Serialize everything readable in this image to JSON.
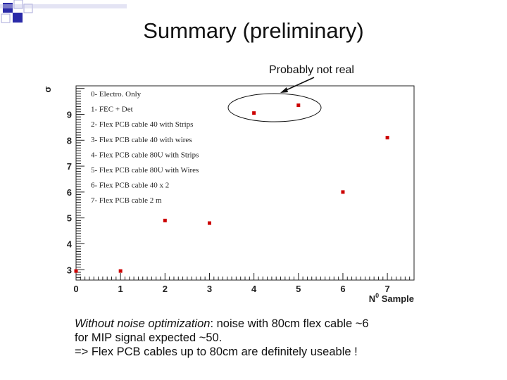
{
  "slide": {
    "title": "Summary (preliminary)",
    "callout": "Probably not real",
    "caption": {
      "line1_emph": "Without noise optimization",
      "line1_rest": ": noise with 80cm flex cable ~6",
      "line2": "for MIP signal expected ~50.",
      "line3": "=> Flex PCB cables up to 80cm are definitely useable !"
    },
    "colors": {
      "marker": "#cc0000",
      "axis": "#222222",
      "deco": "#2a2aa8",
      "deco_light": "#a7a7d8"
    }
  },
  "chart_data": {
    "type": "scatter",
    "title": "",
    "xlabel": "N0 Sample",
    "xlabel_parts": {
      "base": "N",
      "sup": "0",
      "rest": " Sample"
    },
    "ylabel": "σ",
    "xlim": [
      0,
      7.6
    ],
    "ylim": [
      2.6,
      10.1
    ],
    "xticks": [
      "0",
      "1",
      "2",
      "3",
      "4",
      "5",
      "6",
      "7"
    ],
    "yticks": [
      "3",
      "4",
      "5",
      "6",
      "7",
      "8",
      "9"
    ],
    "grid": false,
    "legend_placement": "top-left",
    "legend": [
      "0- Electro. Only",
      "1- FEC + Det",
      "2- Flex PCB cable 40 with Strips",
      "3- Flex PCB cable 40 with wires",
      "4- Flex PCB cable 80U with Strips",
      "5- Flex PCB cable 80U with Wires",
      "6- Flex PCB cable 40 x 2",
      "7- Flex PCB cable 2 m"
    ],
    "points": [
      {
        "x": 0,
        "y": 2.95
      },
      {
        "x": 1,
        "y": 2.95
      },
      {
        "x": 2,
        "y": 4.9
      },
      {
        "x": 3,
        "y": 4.8
      },
      {
        "x": 4,
        "y": 9.05
      },
      {
        "x": 5,
        "y": 9.35
      },
      {
        "x": 6,
        "y": 6.0
      },
      {
        "x": 7,
        "y": 8.1
      }
    ],
    "annotation": {
      "text": "Probably not real",
      "circled_points": [
        4,
        5
      ]
    }
  }
}
